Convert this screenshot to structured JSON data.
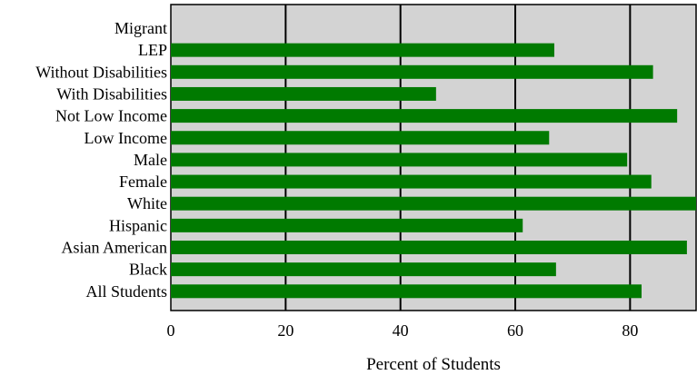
{
  "chart_data": {
    "type": "bar",
    "orientation": "horizontal",
    "categories": [
      "Migrant",
      "LEP",
      "Without Disabilities",
      "With Disabilities",
      "Not Low Income",
      "Low Income",
      "Male",
      "Female",
      "White",
      "Hispanic",
      "Asian American",
      "Black",
      "All Students"
    ],
    "values": [
      null,
      66.8,
      84.0,
      46.2,
      88.2,
      65.9,
      79.5,
      83.7,
      91.5,
      61.3,
      89.9,
      67.1,
      82.0
    ],
    "xlabel": "Percent of Students",
    "ylabel": "",
    "xlim": [
      0,
      91.5
    ],
    "xticks": [
      0,
      20,
      40,
      60,
      80
    ],
    "grid": true,
    "colors": {
      "bar": "#007a00",
      "plot_background": "#d3d3d3",
      "grid": "#000000"
    }
  }
}
